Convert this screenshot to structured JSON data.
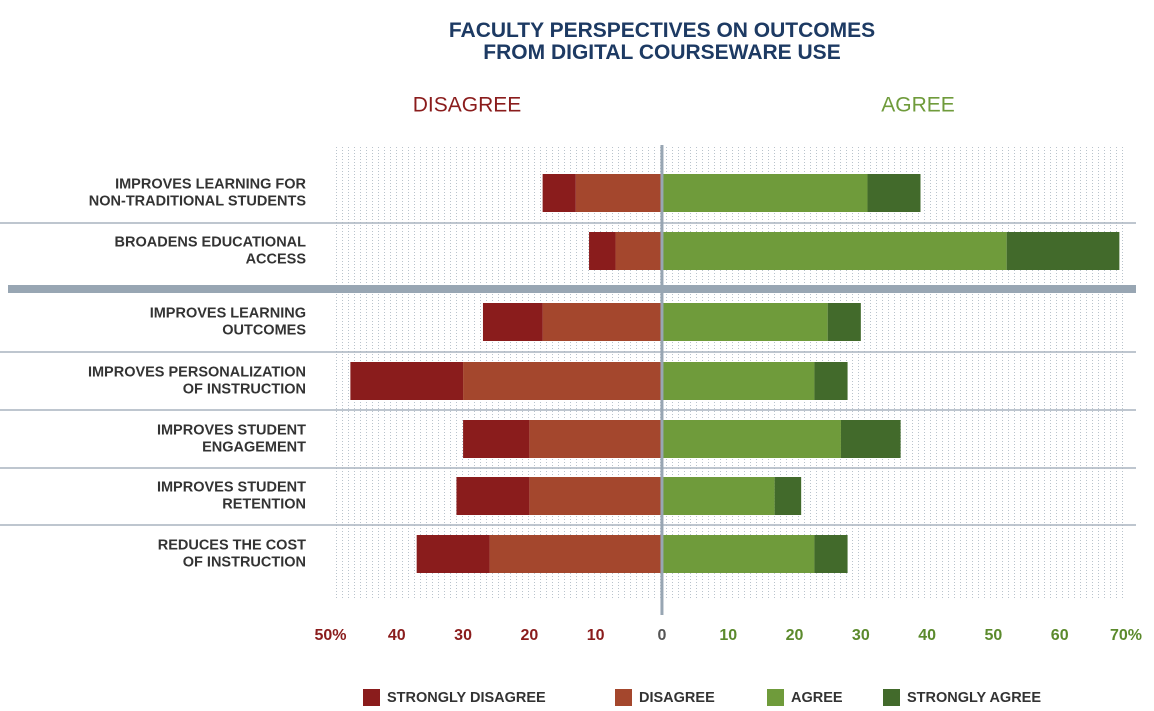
{
  "chart_data": {
    "type": "diverging_bar",
    "title": "FACULTY PERSPECTIVES ON OUTCOMES\nFROM DIGITAL COURSEWARE USE",
    "annotations": [
      "DISAGREE",
      "AGREE"
    ],
    "categories": [
      "IMPROVES LEARNING FOR\nNON-TRADITIONAL STUDENTS",
      "BROADENS EDUCATIONAL\nACCESS",
      "IMPROVES LEARNING\nOUTCOMES",
      "IMPROVES PERSONALIZATION\nOF INSTRUCTION",
      "IMPROVES STUDENT\nENGAGEMENT",
      "IMPROVES STUDENT\nRETENTION",
      "REDUCES THE COST\nOF INSTRUCTION"
    ],
    "series": [
      {
        "name": "STRONGLY DISAGREE",
        "color": "#8a1c1c",
        "values": [
          -5,
          -4,
          -9,
          -17,
          -10,
          -11,
          -11
        ]
      },
      {
        "name": "DISAGREE",
        "color": "#a4472d",
        "values": [
          -13,
          -7,
          -18,
          -30,
          -20,
          -20,
          -26
        ]
      },
      {
        "name": "AGREE",
        "color": "#6f9b3b",
        "values": [
          31,
          52,
          25,
          23,
          27,
          17,
          23
        ]
      },
      {
        "name": "STRONGLY AGREE",
        "color": "#426a2b",
        "values": [
          8,
          17,
          5,
          5,
          9,
          4,
          5
        ]
      }
    ],
    "xlim": [
      -50,
      70
    ],
    "xticks": [
      {
        "value": -50,
        "label": "50%"
      },
      {
        "value": -40,
        "label": "40"
      },
      {
        "value": -30,
        "label": "30"
      },
      {
        "value": -20,
        "label": "20"
      },
      {
        "value": -10,
        "label": "10"
      },
      0,
      10,
      20,
      30,
      40,
      50,
      60,
      {
        "value": 70,
        "label": "70%"
      }
    ]
  }
}
